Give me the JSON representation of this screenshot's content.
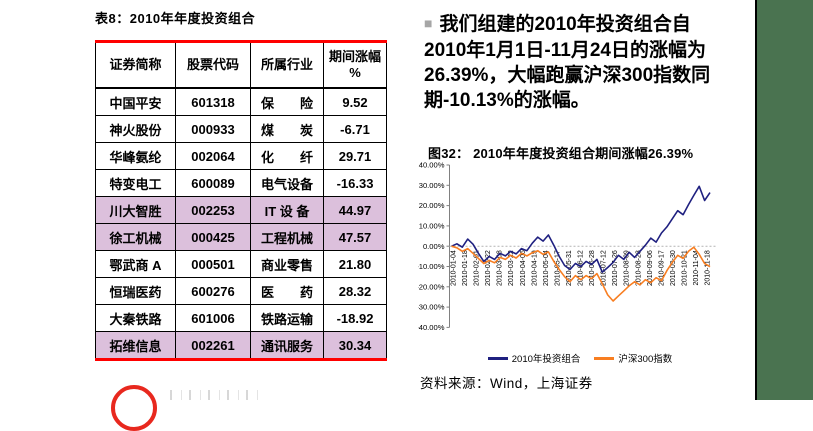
{
  "colors": {
    "sidebar_green": "#4A7350",
    "table_border_red": "#FF0000",
    "row_highlight": "#DCC0DC",
    "portfolio_line": "#1F2080",
    "index_line": "#F87E21",
    "bullet_gray": "#A6A6A6",
    "logo_red": "#E8281E"
  },
  "table_section": {
    "title": "表8：2010年年度投资组合",
    "columns": [
      "证券简称",
      "股票代码",
      "所属行业",
      "期间涨幅\n%"
    ],
    "rows": [
      {
        "name": "中国平安",
        "code": "601318",
        "industry": "保　　险",
        "change": "9.52",
        "highlight": false
      },
      {
        "name": "神火股份",
        "code": "000933",
        "industry": "煤　　炭",
        "change": "-6.71",
        "highlight": false
      },
      {
        "name": "华峰氨纶",
        "code": "002064",
        "industry": "化　　纤",
        "change": "29.71",
        "highlight": false
      },
      {
        "name": "特变电工",
        "code": "600089",
        "industry": "电气设备",
        "change": "-16.33",
        "highlight": false
      },
      {
        "name": "川大智胜",
        "code": "002253",
        "industry": "IT 设 备",
        "change": "44.97",
        "highlight": true
      },
      {
        "name": "徐工机械",
        "code": "000425",
        "industry": "工程机械",
        "change": "47.57",
        "highlight": true
      },
      {
        "name": "鄂武商 A",
        "code": "000501",
        "industry": "商业零售",
        "change": "21.80",
        "highlight": false
      },
      {
        "name": "恒瑞医药",
        "code": "600276",
        "industry": "医　　药",
        "change": "28.32",
        "highlight": false
      },
      {
        "name": "大秦铁路",
        "code": "601006",
        "industry": "铁路运输",
        "change": "-18.92",
        "highlight": false
      },
      {
        "name": "拓维信息",
        "code": "002261",
        "industry": "通讯服务",
        "change": "30.34",
        "highlight": true
      }
    ]
  },
  "commentary": {
    "bullet": "■",
    "text": "我们组建的2010年投资组合自\n2010年1月1日-11月24日的涨幅为\n26.39%，大幅跑赢沪深300指数同\n期-10.13%的涨幅。"
  },
  "chart_section": {
    "title": "图32： 2010年年度投资组合期间涨幅26.39%",
    "source": "资料来源：Wind，上海证券"
  },
  "chart_data": {
    "type": "line",
    "title": "2010年年度投资组合期间涨幅26.39%",
    "xlabel": "",
    "ylabel": "",
    "ylim": [
      -40,
      40
    ],
    "grid": false,
    "legend_position": "bottom",
    "y_ticks": [
      "40.00%",
      "30.00%",
      "20.00%",
      "10.00%",
      "0.00%",
      "-10.00%",
      "-20.00%",
      "-30.00%",
      "-40.00%"
    ],
    "x_tick_labels": [
      "2010-01-04",
      "2010-01-18",
      "2010-02-01",
      "2010-02-22",
      "2010-03-08",
      "2010-03-22",
      "2010-04-06",
      "2010-04-19",
      "2010-05-04",
      "2010-05-17",
      "2010-05-31",
      "2010-06-12",
      "2010-06-28",
      "2010-07-12",
      "2010-07-26",
      "2010-08-09",
      "2010-08-23",
      "2010-09-06",
      "2010-09-17",
      "2010-09-30",
      "2010-10-21",
      "2010-11-04",
      "2010-11-18"
    ],
    "series": [
      {
        "name": "2010年投资组合",
        "color": "#1F2080",
        "values": [
          0.0,
          1.2,
          -0.5,
          3.5,
          1.0,
          -3.5,
          -7.5,
          -5.0,
          -6.5,
          -3.5,
          -4.8,
          -2.5,
          -3.8,
          -1.2,
          -2.2,
          1.5,
          4.5,
          2.5,
          5.5,
          0.5,
          -5.0,
          -9.5,
          -11.5,
          -8.5,
          -10.0,
          -7.5,
          -9.0,
          -6.5,
          -12.8,
          -10.5,
          -8.0,
          -4.5,
          -6.5,
          -3.0,
          -5.5,
          -2.5,
          0.5,
          4.0,
          2.0,
          6.5,
          9.5,
          13.5,
          17.5,
          15.5,
          20.5,
          25.0,
          29.5,
          22.5,
          26.4
        ]
      },
      {
        "name": "沪深300指数",
        "color": "#F87E21",
        "values": [
          0.0,
          -0.8,
          -2.5,
          -1.2,
          -3.5,
          -6.0,
          -8.5,
          -7.0,
          -8.2,
          -5.5,
          -6.5,
          -4.5,
          -5.8,
          -3.5,
          -4.8,
          -3.2,
          -2.2,
          -4.0,
          -2.8,
          -7.5,
          -11.5,
          -15.0,
          -17.5,
          -14.5,
          -16.5,
          -14.5,
          -16.0,
          -13.5,
          -18.5,
          -24.0,
          -27.0,
          -24.5,
          -22.0,
          -19.5,
          -17.5,
          -19.0,
          -16.5,
          -18.0,
          -15.5,
          -17.0,
          -12.0,
          -8.0,
          -4.5,
          -6.0,
          -2.5,
          -0.5,
          -4.0,
          -8.5,
          -10.1
        ]
      }
    ]
  }
}
